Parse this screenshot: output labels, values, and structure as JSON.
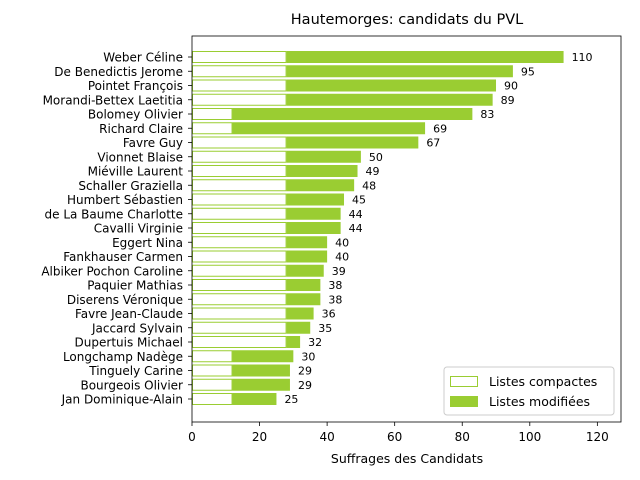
{
  "chart_data": {
    "type": "bar",
    "orientation": "horizontal",
    "stacked": true,
    "title": "Hautemorges: candidats du PVL",
    "xlabel": "Suffrages des Candidats",
    "ylabel": "",
    "xlim": [
      0,
      127
    ],
    "xticks": [
      0,
      20,
      40,
      60,
      80,
      100,
      120
    ],
    "grid": false,
    "legend_position": "lower-right",
    "categories": [
      "Weber Céline",
      "De Benedictis Jerome",
      "Pointet François",
      "Morandi-Bettex Laetitia",
      "Bolomey Olivier",
      "Richard Claire",
      "Favre Guy",
      "Vionnet Blaise",
      "Miéville Laurent",
      "Schaller Graziella",
      "Humbert Sébastien",
      "de La Baume Charlotte",
      "Cavalli Virginie",
      "Eggert Nina",
      "Fankhauser Carmen",
      "Albiker Pochon Caroline",
      "Paquier Mathias",
      "Diserens Véronique",
      "Favre Jean-Claude",
      "Jaccard Sylvain",
      "Dupertuis Michael",
      "Longchamp Nadège",
      "Tinguely Carine",
      "Bourgeois Olivier",
      "Jan Dominique-Alain"
    ],
    "series": [
      {
        "name": "Listes compactes",
        "color": "#9acd32",
        "style": "outline",
        "values": [
          28,
          28,
          28,
          28,
          12,
          12,
          28,
          28,
          28,
          28,
          28,
          28,
          28,
          28,
          28,
          28,
          28,
          28,
          28,
          28,
          28,
          12,
          12,
          12,
          12
        ]
      },
      {
        "name": "Listes modifiées",
        "color": "#9acd32",
        "style": "filled",
        "values": [
          82,
          67,
          62,
          61,
          71,
          57,
          39,
          22,
          21,
          20,
          17,
          16,
          16,
          12,
          12,
          11,
          10,
          10,
          8,
          7,
          4,
          18,
          17,
          17,
          13
        ]
      }
    ],
    "totals": [
      110,
      95,
      90,
      89,
      83,
      69,
      67,
      50,
      49,
      48,
      45,
      44,
      44,
      40,
      40,
      39,
      38,
      38,
      36,
      35,
      32,
      30,
      29,
      29,
      25
    ]
  }
}
